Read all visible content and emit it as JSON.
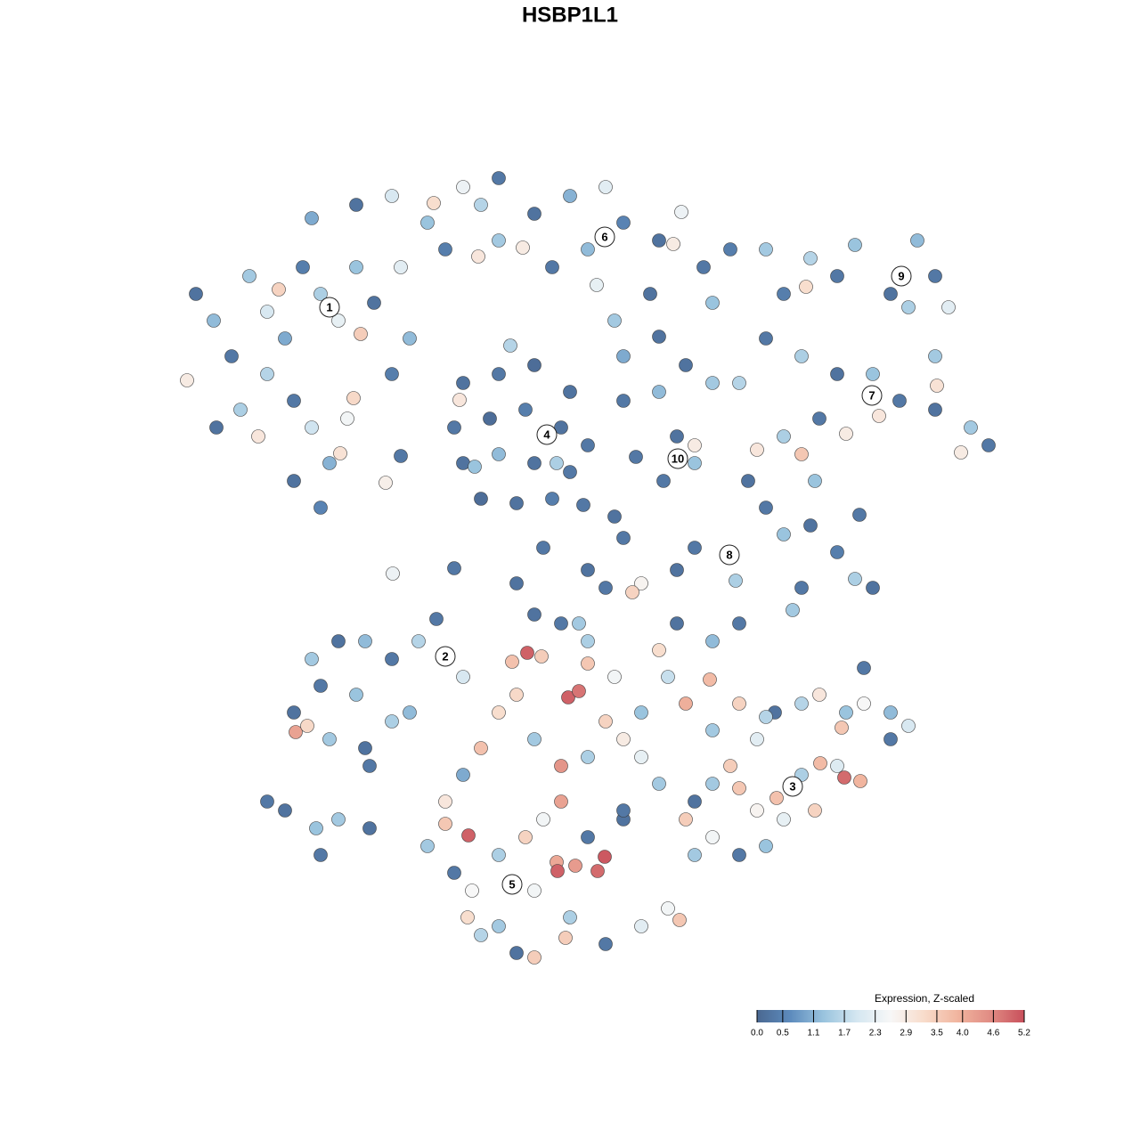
{
  "chart_data": {
    "type": "scatter",
    "title": "HSBP1L1",
    "x": [
      -42,
      -40,
      -38,
      -36,
      -34,
      -32,
      -30,
      -28,
      -26,
      -24,
      -22,
      -23.5,
      -32.7,
      -34,
      -31,
      -29,
      -27,
      -31,
      -28,
      -25,
      -24.3,
      -35,
      -25.8,
      -20.7,
      -43,
      -39.7,
      -37,
      -20,
      -18,
      -19,
      -29,
      -24,
      -20,
      -16,
      -12,
      -8,
      -10,
      -14,
      -8,
      -4,
      0,
      4,
      -2,
      2,
      6,
      10,
      12.5,
      11.6,
      15,
      18,
      16,
      9,
      5,
      3,
      -5.3,
      -15.3,
      -10.3,
      6,
      10,
      -6.7,
      -12,
      -8,
      -4,
      0,
      -13,
      -9,
      -5,
      -1,
      2,
      -12,
      -8,
      -4,
      0,
      -10,
      -6,
      -2,
      -12.4,
      -10.7,
      -1.5,
      -19,
      6,
      10,
      12,
      14,
      10.5,
      13,
      16,
      14,
      7.4,
      1.5,
      5,
      6,
      22,
      27,
      26.5,
      30,
      32,
      36,
      39,
      41,
      42.5,
      38,
      41,
      24,
      22,
      26,
      30,
      34,
      37,
      34.7,
      41,
      45,
      47,
      43.9,
      41.2,
      31,
      28,
      24,
      26,
      21,
      27.5,
      19,
      20,
      22,
      24,
      27,
      30,
      32.5,
      32,
      34,
      26,
      25,
      18,
      14,
      12,
      8,
      7,
      4,
      2,
      -3,
      -6,
      -13,
      -19.9,
      18.6,
      -29,
      -26,
      -23,
      -20,
      -17,
      -15,
      -12,
      -28,
      -24,
      -31,
      -30.8,
      -29.5,
      -27,
      -23,
      -20,
      -18,
      -22.5,
      -34,
      -32,
      -28.5,
      -26,
      -28,
      -22.5,
      -14,
      -11.4,
      -14,
      -16,
      -13,
      -11,
      -8,
      -5,
      -3,
      -1,
      -1.5,
      -1.4,
      0.6,
      3.1,
      3.9,
      2,
      6,
      -8,
      -4,
      0,
      -0.5,
      4,
      8,
      11,
      12.3,
      -4,
      -6,
      -10,
      -11.5,
      -1,
      -4,
      -8,
      -10,
      -12,
      -6,
      -4.8,
      -3.2,
      -0.2,
      1,
      2,
      -1,
      -4,
      2,
      5,
      8,
      6,
      4,
      2,
      10,
      13,
      15.7,
      12,
      16,
      19,
      11,
      8,
      10,
      6,
      1,
      -6.5,
      16,
      19,
      21,
      23,
      26,
      28,
      31,
      33,
      36,
      38,
      36,
      30.5,
      28.1,
      30.8,
      32.6,
      30,
      26,
      23.2,
      27.5,
      24,
      21,
      19,
      18,
      16,
      14,
      16,
      19,
      14,
      13,
      22,
      33,
      22
    ],
    "y": [
      31,
      28,
      24,
      33,
      29,
      26,
      34,
      31,
      28,
      34,
      30,
      26.5,
      31.5,
      22,
      19,
      16,
      12,
      10,
      7,
      17,
      19.3,
      15,
      13.1,
      9.8,
      21.3,
      16,
      18,
      22,
      26,
      34,
      39.5,
      41,
      42,
      39,
      43,
      44,
      41,
      36,
      37,
      40,
      42,
      43,
      34,
      36,
      39,
      37,
      40.2,
      36.6,
      34,
      36,
      30,
      31,
      28,
      32,
      36.2,
      41.2,
      35.2,
      24,
      26.2,
      25.2,
      21,
      22,
      23,
      20,
      16,
      17,
      18,
      16,
      14,
      12,
      13,
      12,
      11,
      8,
      7.5,
      8,
      19.1,
      11.6,
      12,
      12.8,
      19,
      20,
      15,
      12,
      10,
      23,
      21,
      14,
      12.7,
      7.3,
      6,
      3.6,
      36,
      35,
      31.8,
      33,
      36.5,
      31,
      37,
      33,
      29.5,
      29.5,
      24,
      31,
      26,
      24,
      22,
      22,
      19,
      17.3,
      18,
      16,
      14,
      13.2,
      20.7,
      15.3,
      17,
      15,
      13,
      13.5,
      10,
      21,
      10,
      7,
      4,
      5,
      2,
      6.2,
      -1,
      -2,
      -2,
      -4.5,
      1.8,
      2.5,
      0,
      -1.5,
      -2.5,
      -2,
      0,
      2.5,
      -1.5,
      0.2,
      -0.4,
      -1.2,
      -10,
      -8,
      -8,
      -10,
      -8,
      -5.5,
      -12,
      -13,
      -14,
      -16,
      -18.2,
      -17.5,
      -19,
      -20,
      -17,
      -16,
      -22,
      -26,
      -27,
      -29,
      -28,
      -32,
      -29,
      -26,
      -29.8,
      -28.5,
      -31,
      -34,
      -36,
      -32,
      -30,
      -28,
      -26,
      -32.8,
      -33.8,
      -33.2,
      -33.8,
      -32.2,
      -30,
      -28,
      -40,
      -36,
      -39,
      -41.3,
      -42,
      -40,
      -38,
      -39.3,
      -43.5,
      -43,
      -41,
      -39,
      -22,
      -19,
      -16,
      -20,
      -23,
      -14,
      -9.3,
      -9.7,
      -14.3,
      -13.6,
      -10.5,
      -6,
      -5,
      -8,
      -12,
      -16,
      -19,
      -17,
      -21,
      -9,
      -15,
      -12.3,
      -6,
      -8,
      -6,
      -12,
      -21,
      -24,
      -27,
      -6,
      -10.3,
      -18,
      -15,
      -19,
      -16,
      -15,
      -14,
      -16,
      -15,
      -16,
      -17.5,
      -19,
      -17.7,
      -21.7,
      -23.3,
      -23.7,
      -22,
      -23,
      -25.6,
      -27,
      -28,
      -27,
      -24.5,
      -22,
      -24,
      -26,
      -30,
      -32,
      -32,
      -28,
      -31,
      -11,
      -16.5
    ],
    "values": [
      0.2,
      1.2,
      0.3,
      1.4,
      2.0,
      1.0,
      0.4,
      1.5,
      2.3,
      1.3,
      0.2,
      3.5,
      3.4,
      1.6,
      0.3,
      1.9,
      1.1,
      0.2,
      0.5,
      2.5,
      3.3,
      3.0,
      3.1,
      2.8,
      2.9,
      0.2,
      1.5,
      0.4,
      1.2,
      2.2,
      1.0,
      0.2,
      2.0,
      1.3,
      2.4,
      0.3,
      1.6,
      0.4,
      1.4,
      0.2,
      1.1,
      2.2,
      0.3,
      1.2,
      0.5,
      0.2,
      2.4,
      2.9,
      0.3,
      0.4,
      1.3,
      0.2,
      1.4,
      2.3,
      2.9,
      3.2,
      3.0,
      1.0,
      0.2,
      1.6,
      0.2,
      0.3,
      0.1,
      0.2,
      0.3,
      0.1,
      0.4,
      0.2,
      0.3,
      0.2,
      1.2,
      0.2,
      0.3,
      0.1,
      0.2,
      0.4,
      3.0,
      1.3,
      1.5,
      0.3,
      0.3,
      1.2,
      0.2,
      1.3,
      0.3,
      0.2,
      1.4,
      2.9,
      0.3,
      0.3,
      0.2,
      0.3,
      1.4,
      1.6,
      3.2,
      0.3,
      1.3,
      0.2,
      1.2,
      0.3,
      2.2,
      1.5,
      1.4,
      0.4,
      0.3,
      1.5,
      0.2,
      1.3,
      0.3,
      3.0,
      0.2,
      1.4,
      0.3,
      2.9,
      3.1,
      2.9,
      0.3,
      1.5,
      3.6,
      3.0,
      1.3,
      1.6,
      0.2,
      0.3,
      1.3,
      0.2,
      0.4,
      0.3,
      1.5,
      0.2,
      0.3,
      1.4,
      2.0,
      0.3,
      0.2,
      2.7,
      3.4,
      0.3,
      0.2,
      0.3,
      0.2,
      0.3,
      2.4,
      1.5,
      1.4,
      0.2,
      1.2,
      0.3,
      1.6,
      0.3,
      2.0,
      0.3,
      1.3,
      0.2,
      4.2,
      3.3,
      1.4,
      0.2,
      1.5,
      1.2,
      0.3,
      0.3,
      0.2,
      1.3,
      1.4,
      0.3,
      0.2,
      3.0,
      5.0,
      3.6,
      1.4,
      0.3,
      2.6,
      1.5,
      3.4,
      2.5,
      4.2,
      4.1,
      5.0,
      4.3,
      4.9,
      5.1,
      0.3,
      0.2,
      1.4,
      2.5,
      1.5,
      3.5,
      0.3,
      2.2,
      2.5,
      3.6,
      3.5,
      0.2,
      1.6,
      3.2,
      4.4,
      1.4,
      3.2,
      3.7,
      1.0,
      3.3,
      5.0,
      3.5,
      5.0,
      4.8,
      3.6,
      0.3,
      0.2,
      1.5,
      2.5,
      1.3,
      2.9,
      3.4,
      1.5,
      3.2,
      4.0,
      3.8,
      0.2,
      1.2,
      0.3,
      1.8,
      2.3,
      1.4,
      0.3,
      1.4,
      3.7,
      1.4,
      3.4,
      2.2,
      0.2,
      1.6,
      3.0,
      1.3,
      2.6,
      1.2,
      2.0,
      0.3,
      3.6,
      3.8,
      4.9,
      3.9,
      2.1,
      1.5,
      3.7,
      3.4,
      2.3,
      2.7,
      3.6,
      3.5,
      1.4,
      0.2,
      2.5,
      0.3,
      1.4,
      3.5,
      1.3,
      0.3,
      1.6
    ],
    "clusters": [
      {
        "label": "1",
        "x": -27,
        "y": 29.5
      },
      {
        "label": "2",
        "x": -14,
        "y": -9.7
      },
      {
        "label": "3",
        "x": 25,
        "y": -24.3
      },
      {
        "label": "4",
        "x": -2.6,
        "y": 15.2
      },
      {
        "label": "5",
        "x": -6.5,
        "y": -35.3
      },
      {
        "label": "6",
        "x": 3.9,
        "y": 37.4
      },
      {
        "label": "7",
        "x": 33.9,
        "y": 19.6
      },
      {
        "label": "8",
        "x": 17.9,
        "y": 1.7
      },
      {
        "label": "9",
        "x": 37.2,
        "y": 33
      },
      {
        "label": "10",
        "x": 12.1,
        "y": 12.5
      }
    ],
    "colorbar_title": "Expression, Z-scaled",
    "clim": [
      0,
      5.2
    ],
    "colorscale": [
      "#4a6891",
      "#5d8bbd",
      "#9ac4de",
      "#d5e7f1",
      "#f7f7f7",
      "#f8dccb",
      "#f1b59f",
      "#e08b83",
      "#c84f5b"
    ],
    "colorbar_ticks": [
      {
        "value": 0,
        "label": "0.0"
      },
      0.5,
      1.1,
      1.7,
      2.3,
      2.9,
      3.5,
      {
        "value": 4,
        "label": "4.0"
      },
      4.6,
      5.2
    ]
  }
}
